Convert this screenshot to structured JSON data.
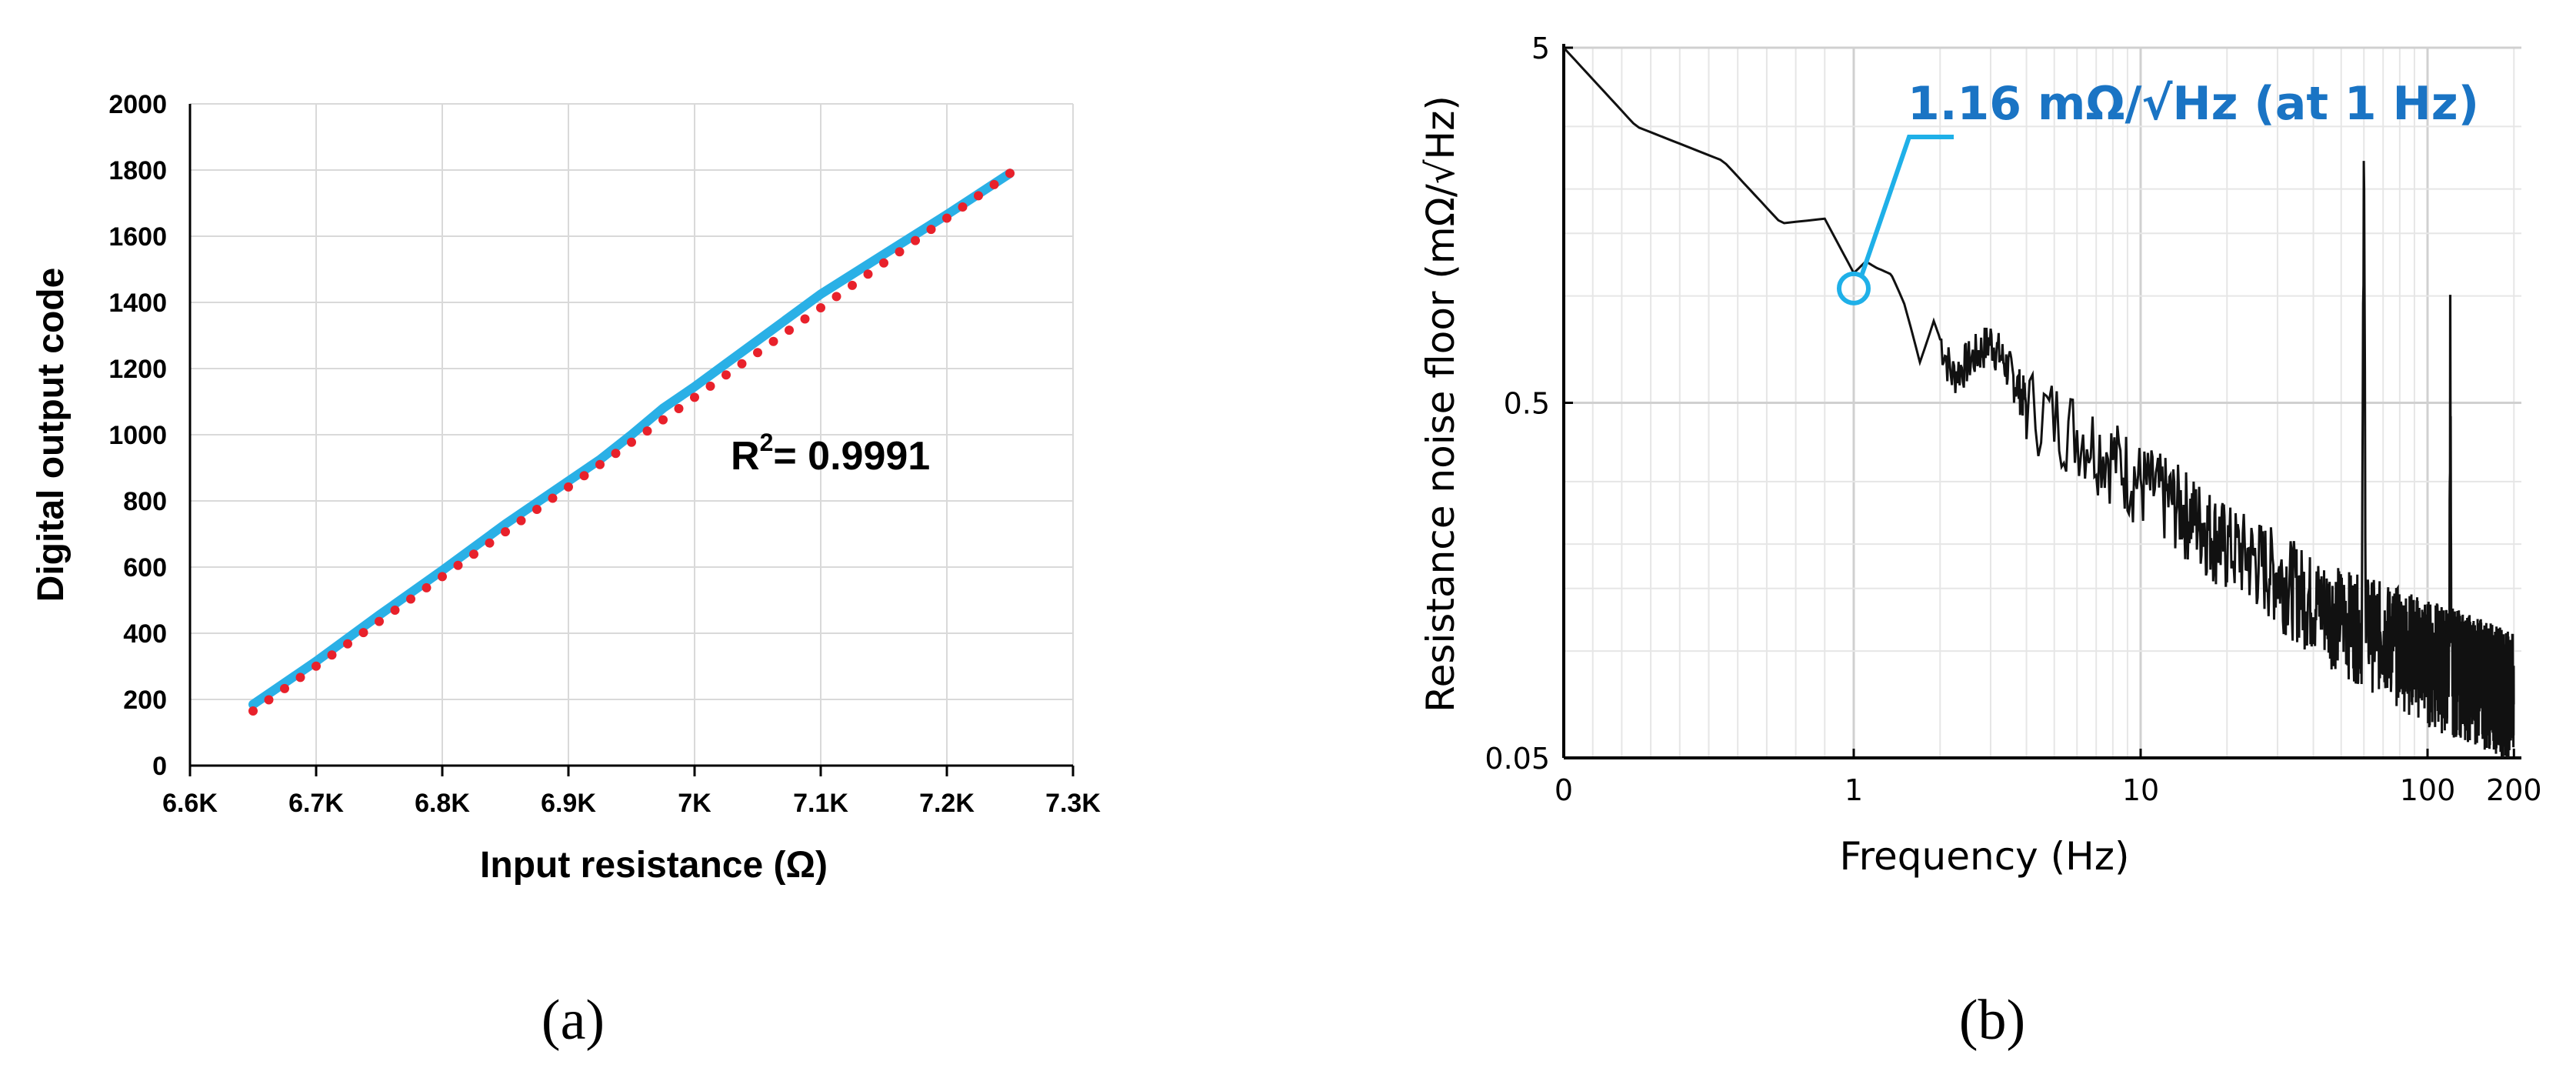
{
  "chart_data": [
    {
      "type": "scatter",
      "panel_label": "(a)",
      "xlabel": "Input resistance (Ω)",
      "ylabel": "Digital output code",
      "xlim": [
        6600,
        7300
      ],
      "ylim": [
        0,
        2000
      ],
      "x_ticks": [
        6600,
        6700,
        6800,
        6900,
        7000,
        7100,
        7200,
        7300
      ],
      "x_tick_labels": [
        "6.6K",
        "6.7K",
        "6.8K",
        "6.9K",
        "7K",
        "7.1K",
        "7.2K",
        "7.3K"
      ],
      "y_ticks": [
        0,
        200,
        400,
        600,
        800,
        1000,
        1200,
        1400,
        1600,
        1800,
        2000
      ],
      "y_tick_labels": [
        "0",
        "200",
        "400",
        "600",
        "800",
        "1000",
        "1200",
        "1400",
        "1600",
        "1800",
        "2000"
      ],
      "grid": true,
      "annotation": {
        "text": "R",
        "sup": "2",
        "suffix": "= 0.9991"
      },
      "series": [
        {
          "kind": "line",
          "color": "#2ab0e6",
          "x": [
            6650,
            6700,
            6750,
            6800,
            6850,
            6900,
            6925,
            6950,
            6975,
            7000,
            7025,
            7050,
            7100,
            7150,
            7200,
            7250
          ],
          "y": [
            185,
            315,
            455,
            590,
            730,
            860,
            925,
            1000,
            1080,
            1145,
            1215,
            1285,
            1425,
            1545,
            1665,
            1790
          ]
        },
        {
          "kind": "dots",
          "color": "#e8212b",
          "x_start": 6650,
          "x_end": 7250,
          "count": 49,
          "y_start": 165,
          "y_end": 1790
        }
      ]
    },
    {
      "type": "line",
      "panel_label": "(b)",
      "xlabel": "Frequency (Hz)",
      "ylabel": "Resistance noise floor (mΩ/√Hz)",
      "x_tick_labels": [
        "0",
        "1",
        "10",
        "100",
        "200"
      ],
      "y_tick_labels": [
        "5",
        "0.5",
        "0.05"
      ],
      "y_scale": "log",
      "ylim": [
        0.05,
        5
      ],
      "line_color": "#111111",
      "annotation": {
        "text": "1.16 mΩ/√Hz (at 1 Hz)",
        "color": "#1a74c4",
        "marker_color": "#1fb0e8",
        "marker_x": 1,
        "marker_y": 1.16
      },
      "segments": [
        {
          "x": 0.0,
          "y": 5.0
        },
        {
          "x": 0.25,
          "y": 3.0
        },
        {
          "x": 0.55,
          "y": 2.4
        },
        {
          "x": 0.75,
          "y": 1.6
        },
        {
          "x": 0.9,
          "y": 1.65
        },
        {
          "x": 1.0,
          "y": 1.16
        },
        {
          "x": 1.1,
          "y": 1.25
        },
        {
          "x": 1.2,
          "y": 1.2
        },
        {
          "x": 1.35,
          "y": 1.15
        },
        {
          "x": 1.5,
          "y": 0.95
        },
        {
          "x": 1.7,
          "y": 0.65
        },
        {
          "x": 1.9,
          "y": 0.85
        },
        {
          "x": 2.2,
          "y": 0.6
        },
        {
          "x": 3.0,
          "y": 0.75
        },
        {
          "x": 4.0,
          "y": 0.5
        },
        {
          "x": 6.0,
          "y": 0.42
        },
        {
          "x": 10.0,
          "y": 0.3
        },
        {
          "x": 20.0,
          "y": 0.2
        },
        {
          "x": 40.0,
          "y": 0.14
        },
        {
          "x": 59.0,
          "y": 0.12
        },
        {
          "x": 60.0,
          "y": 2.4
        },
        {
          "x": 61.0,
          "y": 0.12
        },
        {
          "x": 100.0,
          "y": 0.1
        },
        {
          "x": 119.0,
          "y": 0.095
        },
        {
          "x": 120.0,
          "y": 1.0
        },
        {
          "x": 121.0,
          "y": 0.095
        },
        {
          "x": 200.0,
          "y": 0.08
        }
      ]
    }
  ]
}
